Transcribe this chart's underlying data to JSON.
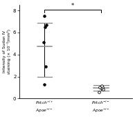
{
  "group1_label": "$\\it{Prkch}$$^{+/+}$\n$\\it{Apoe}$$^{-/-}$",
  "group2_label": "$\\it{Prkch}$$^{-/-}$\n$\\it{Apoe}$$^{-/-}$",
  "group1_points": [
    1.3,
    2.9,
    5.1,
    6.5,
    6.7,
    7.5
  ],
  "group2_points": [
    0.6,
    0.85,
    0.95,
    1.0,
    1.05,
    1.15
  ],
  "group1_mean": 4.75,
  "group1_sd_upper": 6.85,
  "group1_sd_lower": 2.0,
  "group2_mean": 0.95,
  "group2_sd_upper": 1.2,
  "group2_sd_lower": 0.7,
  "ylabel": "Intensity of Sudan IV\nstaining (× 10⁻³/mm²)",
  "ylim": [
    0,
    8.5
  ],
  "yticks": [
    0,
    2,
    4,
    6,
    8
  ],
  "sig_label": "*",
  "background_color": "#ffffff",
  "point_color_g1": "#000000",
  "point_color_g2": "#ffffff",
  "line_color": "#000000",
  "mean_line_color": "#888888"
}
